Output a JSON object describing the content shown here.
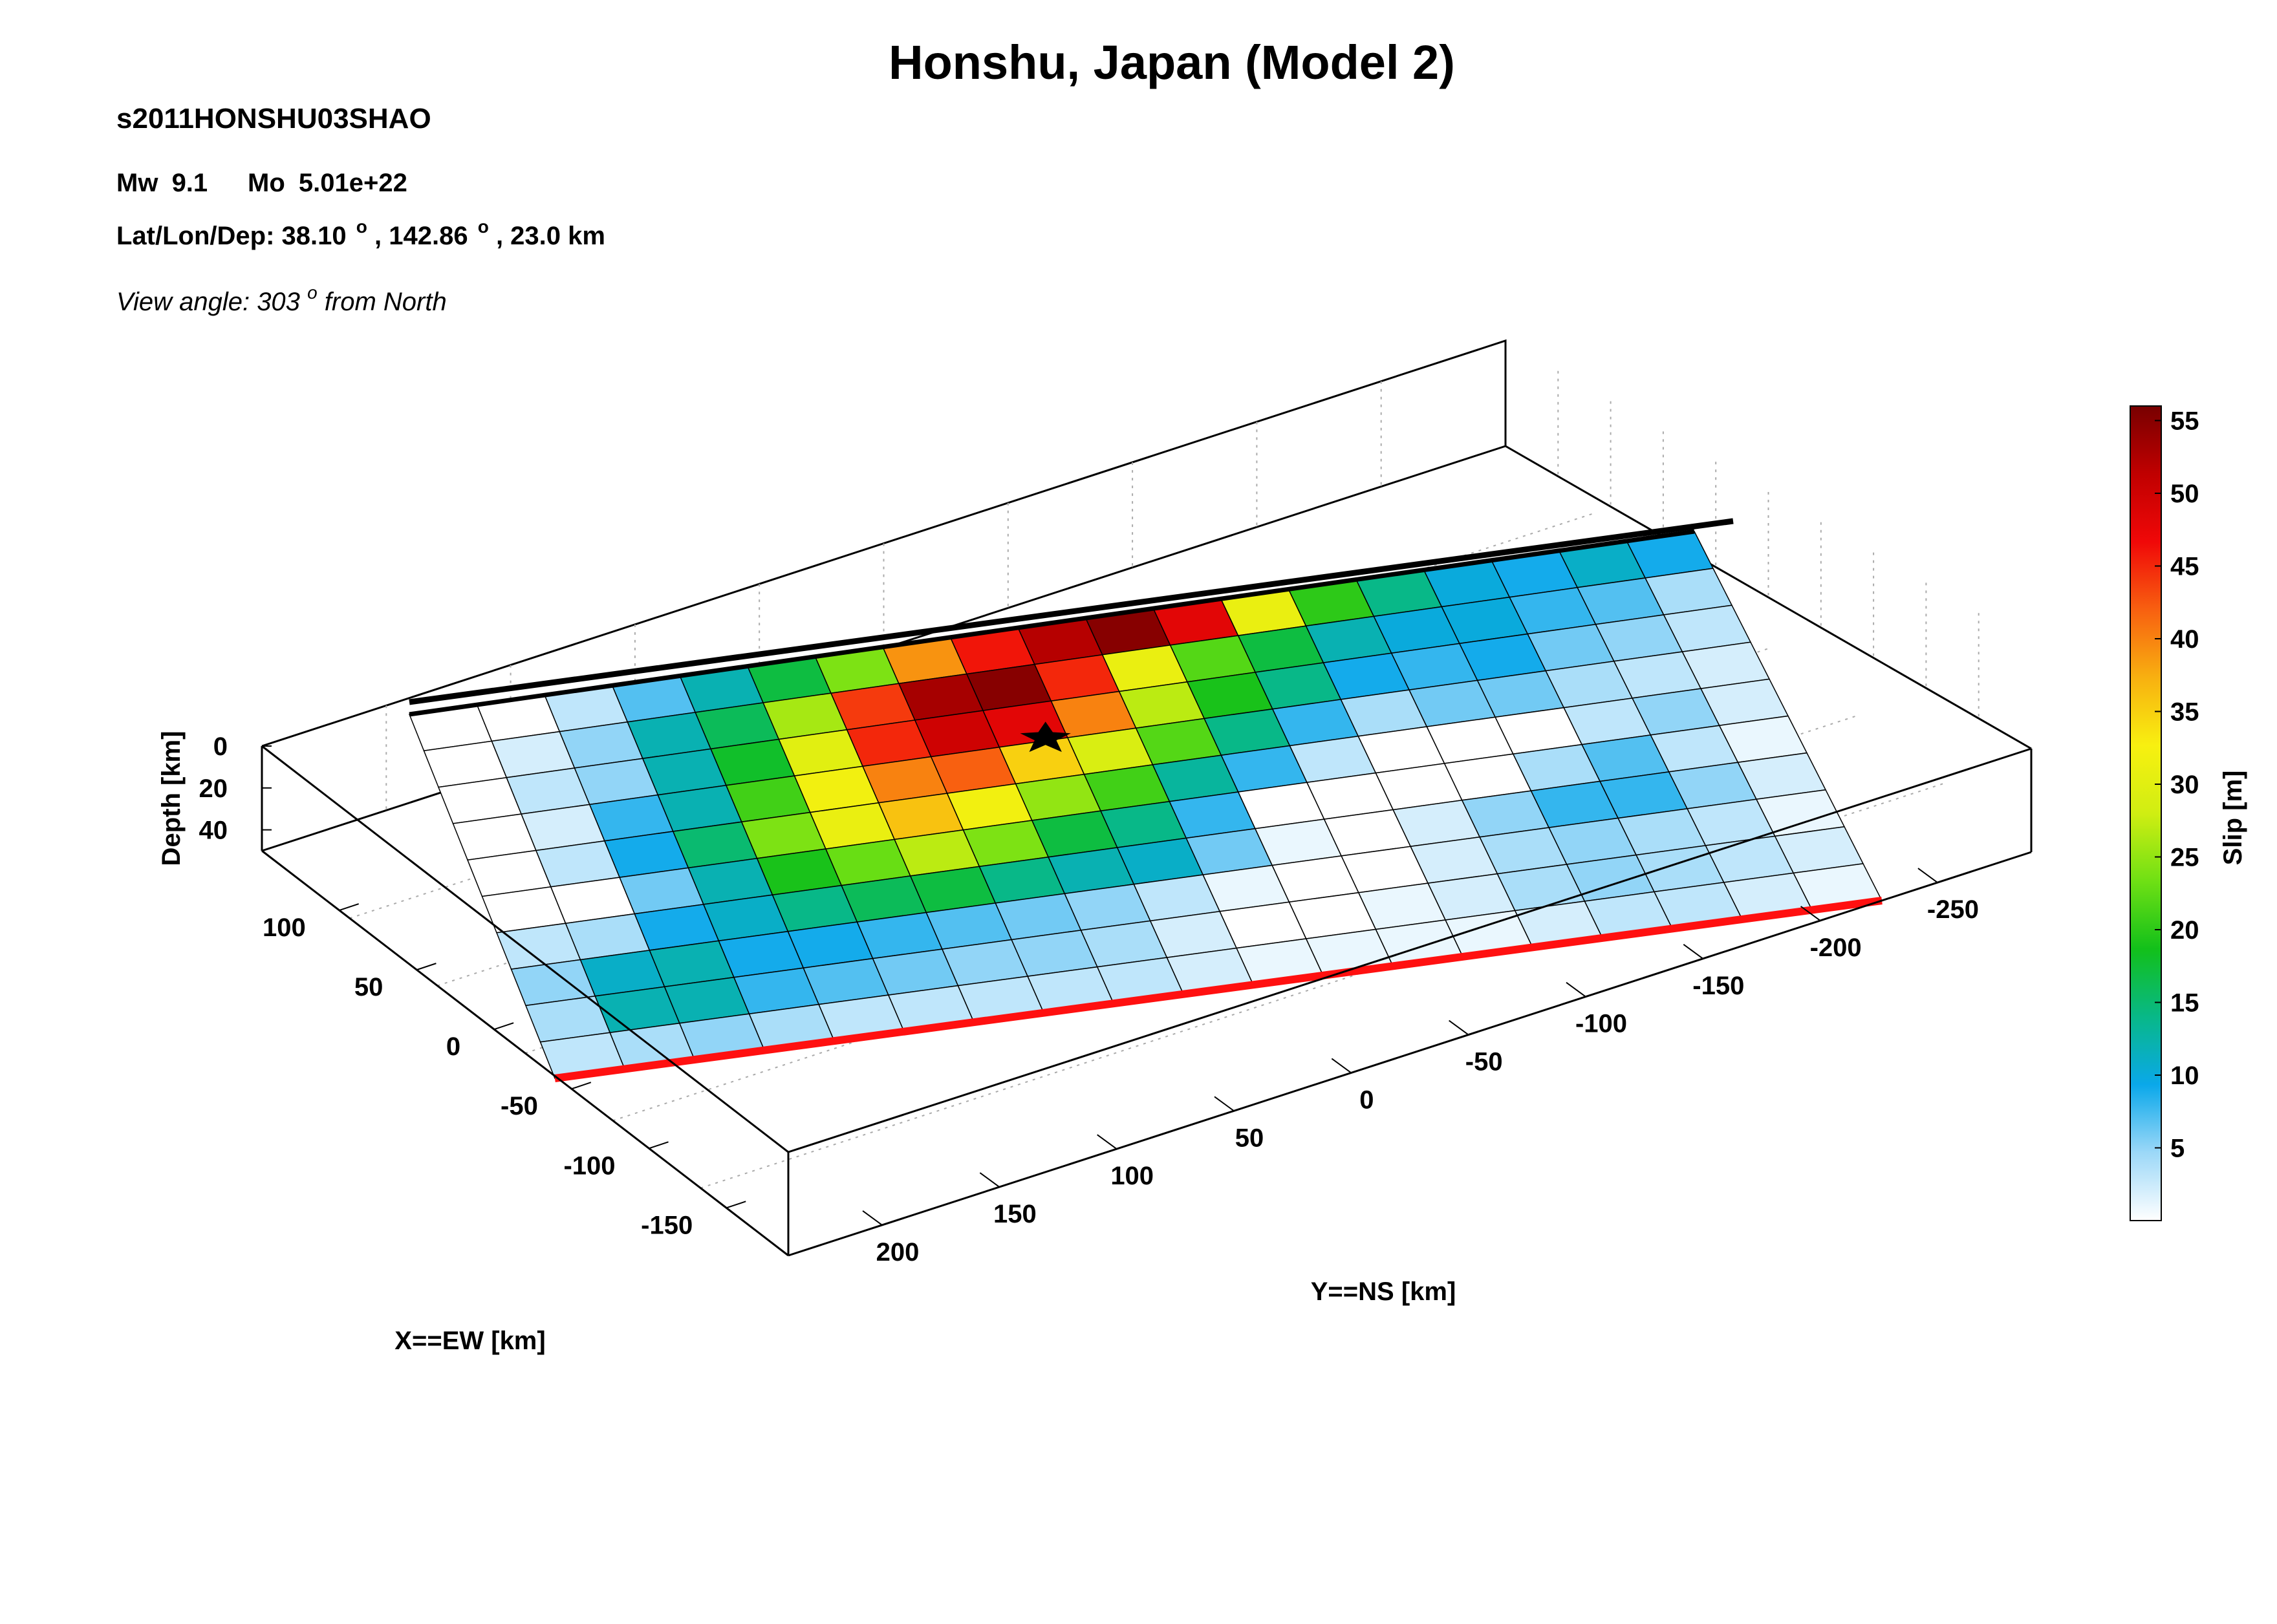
{
  "title": "Honshu, Japan (Model 2)",
  "event_id": "s2011HONSHU03SHAO",
  "magnitude": {
    "mw_label": "Mw",
    "mw": "9.1",
    "mo_label": "Mo",
    "mo": "5.01e+22"
  },
  "location": {
    "prefix": "Lat/Lon/Dep: ",
    "lat": "38.10",
    "lon": "142.86",
    "depth": "23.0 km",
    "degree_symbol": "o"
  },
  "view": {
    "prefix": "View angle: ",
    "angle": "303",
    "degree_symbol": "o",
    "suffix": " from North"
  },
  "colorbar": {
    "label": "Slip [m]",
    "min": 0,
    "max": 56,
    "ticks": [
      5,
      10,
      15,
      20,
      25,
      30,
      35,
      40,
      45,
      50,
      55
    ],
    "stops": [
      "#ffffff",
      "#9cd8f8",
      "#0aa8ea",
      "#08b888",
      "#12c01a",
      "#6fe014",
      "#d0ee12",
      "#f8f010",
      "#f8b010",
      "#f86010",
      "#f00808",
      "#c00000",
      "#780000"
    ]
  },
  "colors": {
    "trench": "#ff1010",
    "top_edge": "#000000",
    "grid": "#aaaaaa",
    "box": "#000000",
    "cell_edge": "#000000"
  },
  "icons": {
    "hypocenter": "star-icon"
  },
  "chart_data": {
    "type": "heatmap",
    "description_fields": "slip per fault subfault; rows along dip (0 = shallow/trench-far edge top), columns along strike",
    "xlabel": "X==EW [km]",
    "ylabel": "Y==NS [km]",
    "zlabel": "Depth [km]",
    "x_ticks": [
      -150,
      -100,
      -50,
      0,
      50,
      100
    ],
    "y_ticks": [
      200,
      150,
      100,
      50,
      0,
      -50,
      -100,
      -150,
      -200,
      -250
    ],
    "z_ticks": [
      0,
      20,
      40
    ],
    "z_range": [
      0,
      50
    ],
    "grid": true,
    "rows": 10,
    "cols": 19,
    "slip_m": [
      [
        0,
        0,
        3,
        7,
        12,
        17,
        24,
        39,
        46,
        52,
        55,
        48,
        31,
        20,
        14,
        10,
        9,
        11,
        9
      ],
      [
        0,
        2,
        5,
        12,
        16,
        26,
        44,
        53,
        55,
        45,
        31,
        22,
        17,
        12,
        10,
        10,
        8,
        7,
        4
      ],
      [
        0,
        3,
        5,
        12,
        18,
        30,
        45,
        50,
        48,
        40,
        27,
        19,
        14,
        9,
        8,
        9,
        6,
        5,
        3
      ],
      [
        0,
        2,
        8,
        12,
        21,
        32,
        40,
        42,
        35,
        29,
        22,
        14,
        8,
        4,
        6,
        6,
        4,
        3,
        2
      ],
      [
        0,
        3,
        9,
        15,
        24,
        31,
        36,
        32,
        25,
        21,
        13,
        8,
        3,
        0,
        0,
        0,
        3,
        5,
        2
      ],
      [
        0,
        0,
        6,
        12,
        19,
        23,
        27,
        24,
        17,
        14,
        8,
        0,
        0,
        0,
        0,
        4,
        7,
        3,
        1
      ],
      [
        3,
        4,
        9,
        11,
        14,
        16,
        17,
        14,
        12,
        11,
        6,
        1,
        0,
        2,
        5,
        8,
        8,
        5,
        2
      ],
      [
        5,
        11,
        12,
        9,
        9,
        8,
        7,
        6,
        5,
        3,
        1,
        0,
        0,
        2,
        4,
        5,
        4,
        3,
        1
      ],
      [
        4,
        12,
        12,
        8,
        7,
        6,
        5,
        5,
        4,
        2,
        0,
        0,
        1,
        2,
        4,
        5,
        4,
        3,
        2
      ],
      [
        3,
        4,
        5,
        4,
        3,
        3,
        3,
        3,
        3,
        2,
        1,
        1,
        1,
        1,
        2,
        3,
        3,
        2,
        1
      ]
    ],
    "hypocenter": {
      "row": 2.9,
      "col": 8.7
    }
  }
}
